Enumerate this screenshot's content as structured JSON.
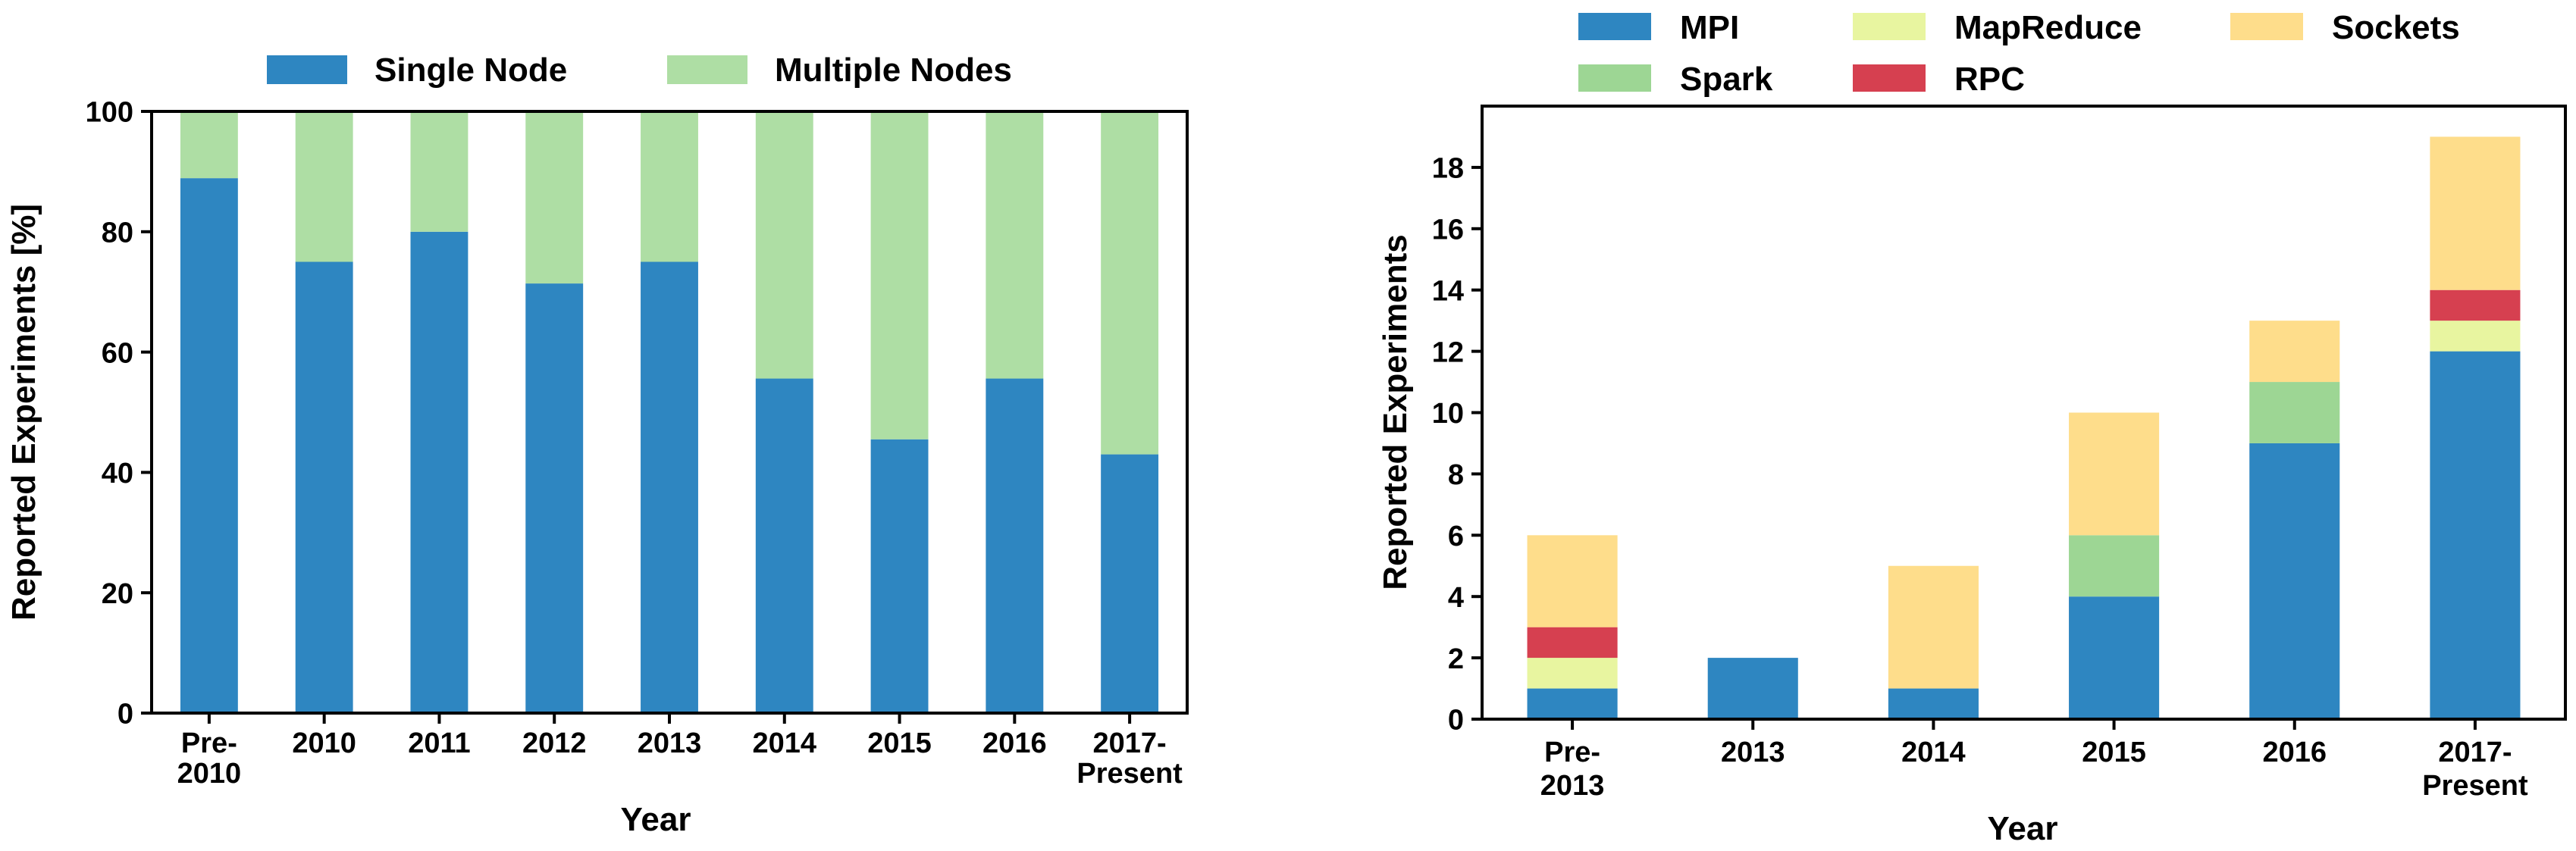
{
  "chart_data": [
    {
      "type": "bar",
      "stacked": true,
      "categories": [
        "Pre-2010",
        "2010",
        "2011",
        "2012",
        "2013",
        "2014",
        "2015",
        "2016",
        "2017-Present"
      ],
      "category_lines": [
        [
          "Pre-",
          "2010"
        ],
        [
          "2010"
        ],
        [
          "2011"
        ],
        [
          "2012"
        ],
        [
          "2013"
        ],
        [
          "2014"
        ],
        [
          "2015"
        ],
        [
          "2016"
        ],
        [
          "2017-",
          "Present"
        ]
      ],
      "series": [
        {
          "name": "Single Node",
          "color": "#2e86c1",
          "values": [
            88.9,
            75,
            80,
            71.4,
            75,
            55.6,
            45.5,
            55.6,
            43
          ]
        },
        {
          "name": "Multiple Nodes",
          "color": "#aedea4",
          "values": [
            11.1,
            25,
            20,
            28.6,
            25,
            44.4,
            54.5,
            44.4,
            57
          ]
        }
      ],
      "xlabel": "Year",
      "ylabel": "Reported Experiments [%]",
      "ylim": [
        0,
        100
      ],
      "yticks": [
        0,
        20,
        40,
        60,
        80,
        100
      ],
      "legend": "top-center",
      "grid": false
    },
    {
      "type": "bar",
      "stacked": true,
      "categories": [
        "Pre-2013",
        "2013",
        "2014",
        "2015",
        "2016",
        "2017-Present"
      ],
      "category_lines": [
        [
          "Pre-",
          "2013"
        ],
        [
          "2013"
        ],
        [
          "2014"
        ],
        [
          "2015"
        ],
        [
          "2016"
        ],
        [
          "2017-",
          "Present"
        ]
      ],
      "series": [
        {
          "name": "MPI",
          "color": "#2e86c1",
          "values": [
            1,
            2,
            1,
            4,
            9,
            12
          ]
        },
        {
          "name": "MapReduce",
          "color": "#e8f5a0",
          "values": [
            1,
            0,
            0,
            0,
            0,
            1
          ]
        },
        {
          "name": "RPC",
          "color": "#d64050",
          "values": [
            1,
            0,
            0,
            0,
            0,
            1
          ]
        },
        {
          "name": "Spark",
          "color": "#9dd694",
          "values": [
            0,
            0,
            0,
            2,
            2,
            0
          ]
        },
        {
          "name": "Sockets",
          "color": "#fedd8b",
          "values": [
            3,
            0,
            4,
            4,
            2,
            5
          ]
        }
      ],
      "xlabel": "Year",
      "ylabel": "Reported Experiments",
      "ylim": [
        0,
        20
      ],
      "yticks": [
        0,
        2,
        4,
        6,
        8,
        10,
        12,
        14,
        16,
        18
      ],
      "legend": "top",
      "grid": false
    }
  ]
}
